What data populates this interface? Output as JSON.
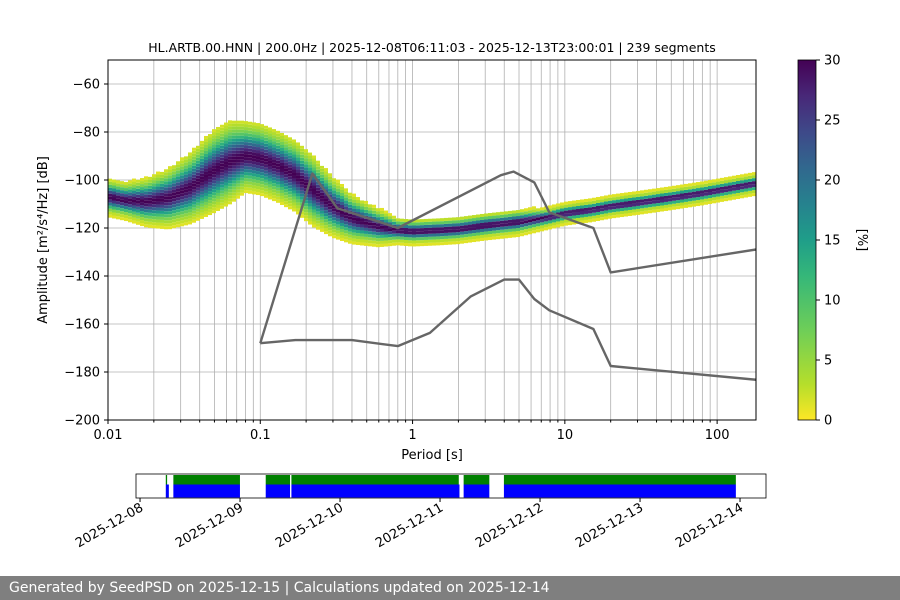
{
  "chart_data": [
    {
      "type": "heatmap",
      "title": "HL.ARTB.00.HNN | 200.0Hz | 2025-12-08T06:11:03 - 2025-12-13T23:00:01 | 239 segments",
      "xlabel": "Period [s]",
      "ylabel": "Amplitude [m²/s⁴/Hz] [dB]",
      "x_scale": "log",
      "xlim": [
        0.01,
        180
      ],
      "ylim": [
        -200,
        -50
      ],
      "x_ticks": [
        0.01,
        0.1,
        1,
        10,
        100
      ],
      "x_tick_labels": [
        "0.01",
        "0.1",
        "1",
        "10",
        "100"
      ],
      "y_ticks": [
        -200,
        -180,
        -160,
        -140,
        -120,
        -100,
        -80,
        -60
      ],
      "y_tick_labels": [
        "−200",
        "−180",
        "−160",
        "−140",
        "−120",
        "−100",
        "−80",
        "−60"
      ],
      "grid": true,
      "colorbar": {
        "label": "[%]",
        "range": [
          0,
          30
        ],
        "ticks": [
          0,
          5,
          10,
          15,
          20,
          25,
          30
        ],
        "colormap": "viridis_r"
      },
      "psd_mode_curve": {
        "periods": [
          0.01,
          0.013,
          0.018,
          0.025,
          0.035,
          0.05,
          0.065,
          0.08,
          0.1,
          0.13,
          0.17,
          0.22,
          0.3,
          0.4,
          0.6,
          0.8,
          1,
          1.5,
          2,
          3,
          5,
          8,
          10,
          15,
          20,
          30,
          50,
          80,
          120,
          180
        ],
        "values": [
          -107,
          -108.5,
          -109,
          -107.5,
          -103,
          -96,
          -92,
          -90,
          -91,
          -94,
          -98,
          -104,
          -111,
          -116,
          -119.5,
          -121,
          -121.5,
          -121,
          -120.5,
          -119,
          -117.5,
          -115.5,
          -114,
          -112.5,
          -111,
          -109.5,
          -107.5,
          -105.5,
          -103.5,
          -101.5
        ],
        "spread_db": [
          3,
          3,
          4,
          5,
          6,
          7,
          7,
          6,
          6,
          6,
          6,
          6,
          5,
          4,
          3,
          2,
          2,
          2,
          2,
          2,
          2,
          1.5,
          1.5,
          1.5,
          1.5,
          1.5,
          1.5,
          1.5,
          1.5,
          1.5
        ]
      },
      "yellow_outlier_band": {
        "periods": [
          2,
          3,
          5,
          8,
          12,
          18,
          25,
          35,
          50,
          80,
          120,
          180
        ],
        "values": [
          -113,
          -111,
          -108,
          -105,
          -101,
          -96,
          -90,
          -93,
          -99,
          -98,
          -94,
          -91
        ]
      },
      "reference_curves": [
        {
          "x": [
            0.1,
            0.17,
            0.4,
            0.8,
            1.3,
            2.4,
            4,
            5,
            6.3,
            7.9,
            15.4,
            20,
            354.8
          ],
          "y": [
            -168,
            -166.7,
            -166.7,
            -169.2,
            -163.7,
            -148.6,
            -141.5,
            -141.5,
            -149.6,
            -154.3,
            -162.1,
            -177.5,
            -185
          ]
        },
        {
          "x": [
            0.1,
            0.22,
            0.32,
            0.8,
            3.8,
            4.6,
            6.3,
            7.9,
            15.4,
            20,
            354.8
          ],
          "y": [
            -168,
            -97.3,
            -111.7,
            -120,
            -98,
            -96.5,
            -101,
            -113.5,
            -120,
            -138.5,
            -126
          ]
        }
      ]
    },
    {
      "type": "timeline",
      "tick_labels": [
        "2025-12-08",
        "2025-12-09",
        "2025-12-10",
        "2025-12-11",
        "2025-12-12",
        "2025-12-13",
        "2025-12-14"
      ],
      "series": [
        {
          "color": "#008000",
          "segments": [
            [
              "2025-12-08T06:11",
              "2025-12-08T06:30"
            ],
            [
              "2025-12-08T08:00",
              "2025-12-08T23:59"
            ],
            [
              "2025-12-09T06:10",
              "2025-12-09T12:00"
            ],
            [
              "2025-12-09T12:20",
              "2025-12-11T04:30"
            ],
            [
              "2025-12-11T05:40",
              "2025-12-11T11:50"
            ],
            [
              "2025-12-11T15:20",
              "2025-12-13T23:00"
            ]
          ]
        },
        {
          "color": "#0000ff",
          "segments": [
            [
              "2025-12-08T06:11",
              "2025-12-08T06:55"
            ],
            [
              "2025-12-08T08:00",
              "2025-12-08T23:59"
            ],
            [
              "2025-12-09T06:10",
              "2025-12-09T12:00"
            ],
            [
              "2025-12-09T12:20",
              "2025-12-11T04:40"
            ],
            [
              "2025-12-11T05:40",
              "2025-12-11T11:50"
            ],
            [
              "2025-12-11T15:20",
              "2025-12-13T23:00"
            ]
          ]
        }
      ]
    }
  ],
  "footer": {
    "text": "Generated by SeedPSD on 2025-12-15 | Calculations updated on 2025-12-14"
  }
}
